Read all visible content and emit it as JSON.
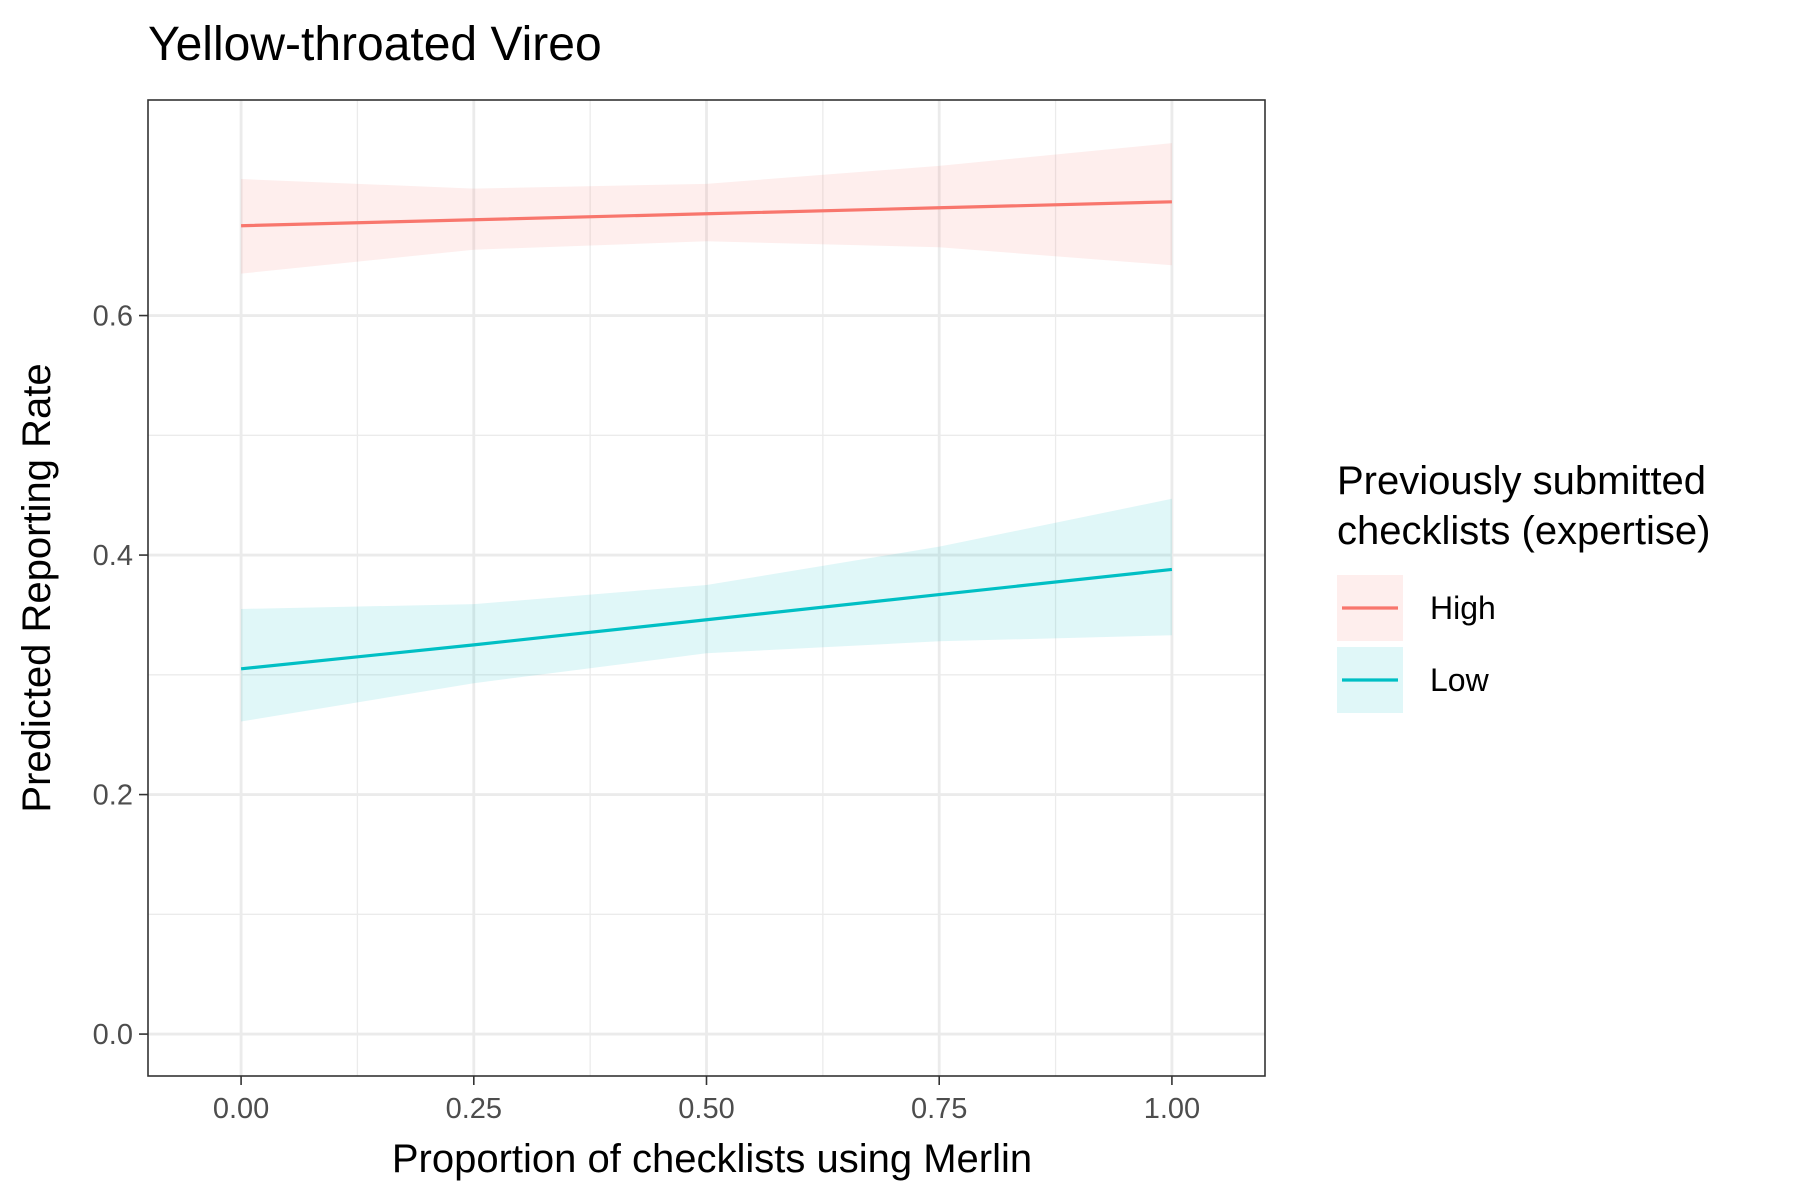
{
  "chart_data": {
    "type": "line",
    "title": "Yellow-throated Vireo",
    "xlabel": "Proportion of checklists using Merlin",
    "ylabel": "Predicted Reporting Rate",
    "xlim": [
      -0.1,
      1.1
    ],
    "ylim": [
      -0.035,
      0.78
    ],
    "x_ticks": [
      0,
      0.25,
      0.5,
      0.75,
      1
    ],
    "x_tick_labels": [
      "0.00",
      "0.25",
      "0.50",
      "0.75",
      "1.00"
    ],
    "y_ticks": [
      0,
      0.2,
      0.4,
      0.6
    ],
    "y_tick_labels": [
      "0.0",
      "0.2",
      "0.4",
      "0.6"
    ],
    "grid": true,
    "legend": {
      "title_lines": [
        "Previously submitted",
        "checklists (expertise)"
      ],
      "placement": "right"
    },
    "series": [
      {
        "name": "High",
        "color": "#F8766D",
        "x": [
          0,
          0.25,
          0.5,
          0.75,
          1
        ],
        "y": [
          0.675,
          0.68,
          0.685,
          0.69,
          0.695
        ],
        "lower": [
          0.635,
          0.655,
          0.662,
          0.657,
          0.642
        ],
        "upper": [
          0.714,
          0.706,
          0.71,
          0.725,
          0.744
        ]
      },
      {
        "name": "Low",
        "color": "#00BFC4",
        "x": [
          0,
          0.25,
          0.5,
          0.75,
          1
        ],
        "y": [
          0.305,
          0.325,
          0.346,
          0.367,
          0.388
        ],
        "lower": [
          0.261,
          0.293,
          0.318,
          0.328,
          0.333
        ],
        "upper": [
          0.355,
          0.359,
          0.375,
          0.407,
          0.447
        ]
      }
    ]
  }
}
